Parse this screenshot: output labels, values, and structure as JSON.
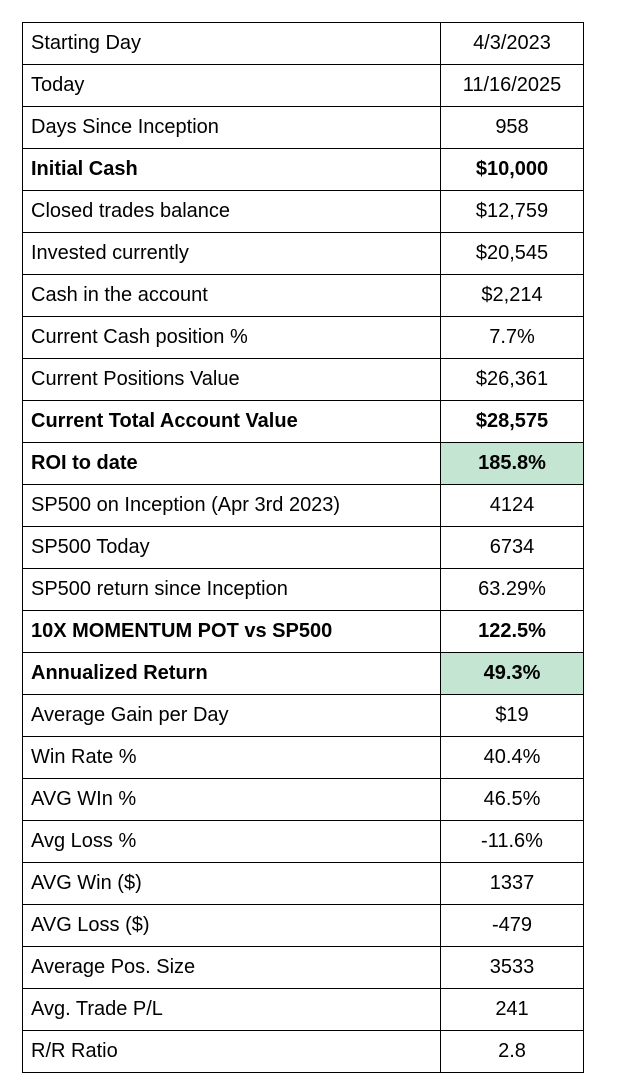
{
  "table": {
    "rows": [
      {
        "label": "Starting Day",
        "value": "4/3/2023"
      },
      {
        "label": "Today",
        "value": "11/16/2025"
      },
      {
        "label": "Days Since Inception",
        "value": "958"
      },
      {
        "label": "Initial Cash",
        "value": "$10,000",
        "bold": true
      },
      {
        "label": "Closed trades balance",
        "value": "$12,759"
      },
      {
        "label": "Invested currently",
        "value": "$20,545"
      },
      {
        "label": "Cash in the account",
        "value": "$2,214"
      },
      {
        "label": "Current Cash position %",
        "value": "7.7%"
      },
      {
        "label": "Current Positions Value",
        "value": "$26,361"
      },
      {
        "label": "Current Total Account Value",
        "value": "$28,575",
        "bold": true
      },
      {
        "label": "ROI to date",
        "value": "185.8%",
        "bold": true,
        "highlight": "#c3e5d1"
      },
      {
        "label": "SP500 on Inception (Apr 3rd 2023)",
        "value": "4124"
      },
      {
        "label": "SP500 Today",
        "value": "6734"
      },
      {
        "label": "SP500 return since Inception",
        "value": "63.29%"
      },
      {
        "label": "10X MOMENTUM POT vs SP500",
        "value": "122.5%",
        "bold": true
      },
      {
        "label": "Annualized Return",
        "value": "49.3%",
        "bold": true,
        "highlight": "#c3e5d1"
      },
      {
        "label": "Average Gain per Day",
        "value": "$19"
      },
      {
        "label": "Win Rate %",
        "value": "40.4%"
      },
      {
        "label": "AVG WIn %",
        "value": "46.5%"
      },
      {
        "label": "Avg Loss %",
        "value": "-11.6%"
      },
      {
        "label": "AVG Win ($)",
        "value": "1337"
      },
      {
        "label": "AVG Loss ($)",
        "value": "-479"
      },
      {
        "label": "Average Pos. Size",
        "value": "3533"
      },
      {
        "label": "Avg. Trade P/L",
        "value": "241"
      },
      {
        "label": "R/R Ratio",
        "value": "2.8"
      }
    ]
  }
}
